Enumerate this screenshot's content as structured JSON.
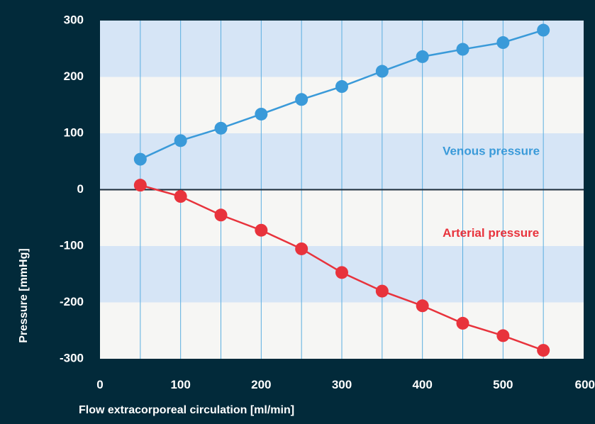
{
  "chart_data": {
    "type": "line",
    "title": "",
    "xlabel": "Flow extracorporeal circulation [ml/min]",
    "ylabel": "Pressure [mmHg]",
    "xlim": [
      0,
      600
    ],
    "ylim": [
      -300,
      300
    ],
    "x_ticks": [
      0,
      100,
      200,
      300,
      400,
      500,
      600
    ],
    "y_ticks": [
      300,
      200,
      100,
      0,
      -100,
      -200,
      -300
    ],
    "x_tick_labels": [
      "0",
      "100",
      "200",
      "300",
      "400",
      "500",
      "600"
    ],
    "y_tick_labels": [
      "300",
      "200",
      "100",
      "0",
      "-100",
      "-200",
      "-300"
    ],
    "grid": {
      "vertical_every": 50,
      "horizontal_bands": true
    },
    "x": [
      50,
      100,
      150,
      200,
      250,
      300,
      350,
      400,
      450,
      500,
      550
    ],
    "series": [
      {
        "name": "Venous pressure",
        "color": "#3a9ad9",
        "label_at": [
          425,
          67
        ],
        "values": [
          54,
          87,
          109,
          134,
          160,
          183,
          210,
          236,
          249,
          261,
          283
        ]
      },
      {
        "name": "Arterial pressure",
        "color": "#e8333c",
        "label_at": [
          425,
          -78
        ],
        "values": [
          8,
          -12,
          -45,
          -72,
          -105,
          -147,
          -180,
          -206,
          -237,
          -259,
          -285
        ]
      }
    ],
    "colors": {
      "background": "#022a3a",
      "band_blue": "#d6e5f6",
      "band_light": "#f6f6f4",
      "grid_line": "#5aaee0",
      "zero_line": "#1b2b3a"
    }
  }
}
